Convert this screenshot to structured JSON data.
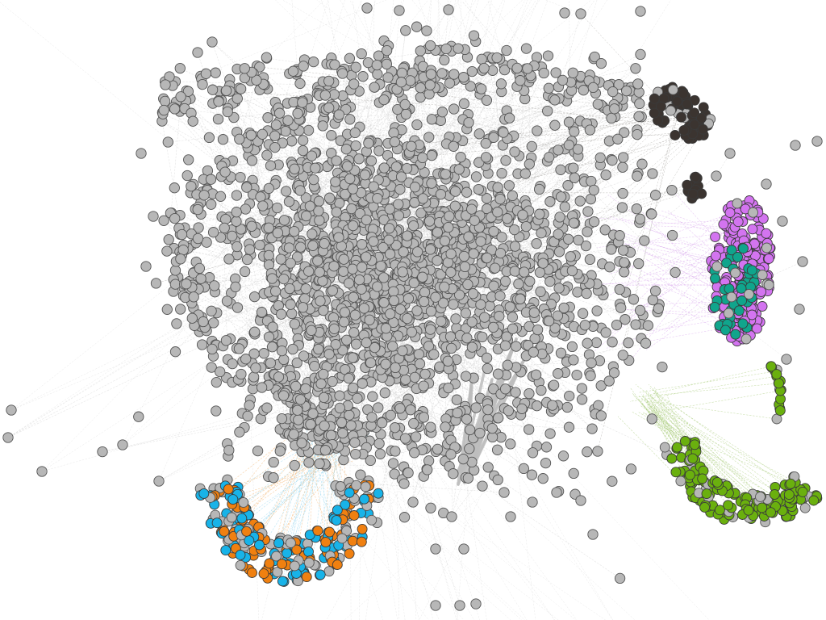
{
  "graph": {
    "type": "network-visualization",
    "colors": {
      "background": "#ffffff",
      "node_default": "#b7b7b7",
      "node_outline": "#555555",
      "edge_default": "#cfcfcf",
      "edge_trunk": "#bdbdbd"
    },
    "communities": [
      {
        "name": "dark-brown",
        "color": "#3b3430",
        "edge_color": "#8a8580"
      },
      {
        "name": "magenta",
        "color": "#d374f0",
        "edge_color": "#d9a9ec"
      },
      {
        "name": "teal",
        "color": "#10a58c",
        "edge_color": "#7fcfc0"
      },
      {
        "name": "lime-green",
        "color": "#6ab00e",
        "edge_color": "#a9cc7a"
      },
      {
        "name": "sky-blue",
        "color": "#18b3e8",
        "edge_color": "#8fd3ef"
      },
      {
        "name": "orange",
        "color": "#f08010",
        "edge_color": "#f3b36b"
      }
    ]
  }
}
